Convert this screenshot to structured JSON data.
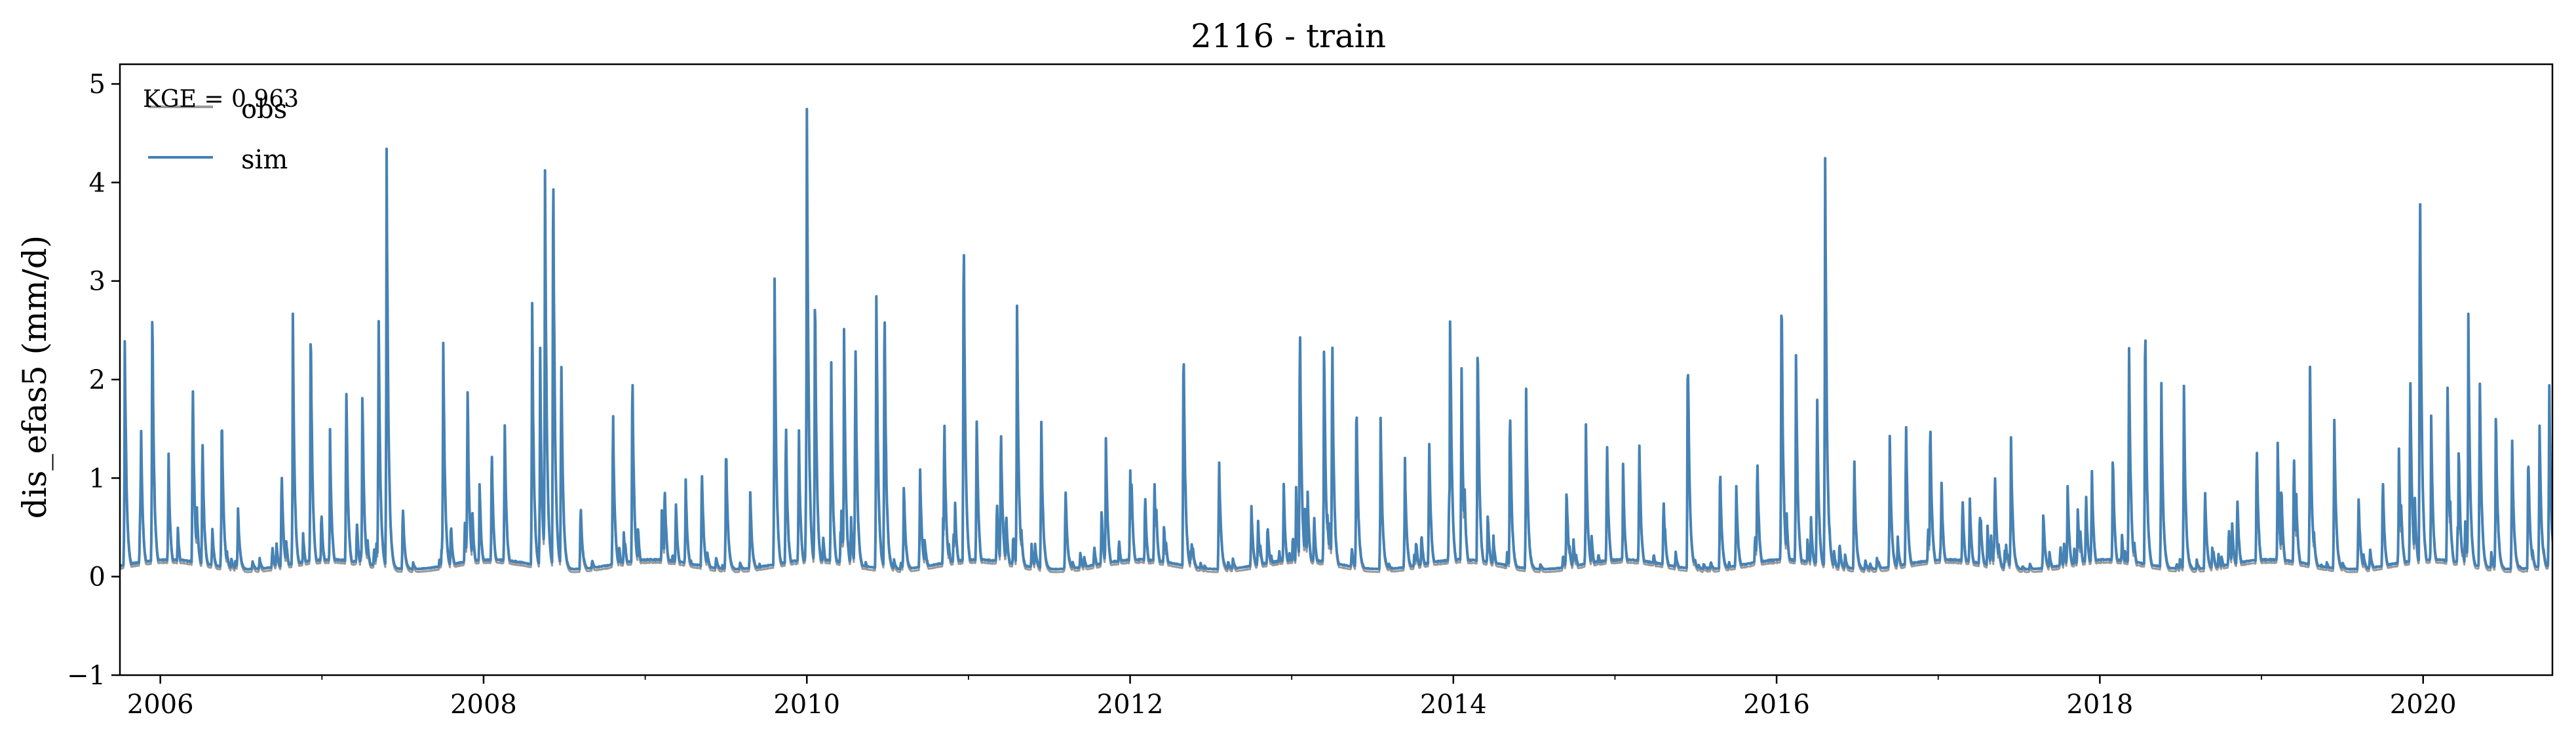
{
  "chart_data": {
    "type": "line",
    "title": "2116 - train",
    "xlabel": "",
    "ylabel": "dis_efas5 (mm/d)",
    "xlim": [
      2005.75,
      2020.8
    ],
    "ylim": [
      -1,
      5.2
    ],
    "xticks": [
      "2006",
      "2008",
      "2010",
      "2012",
      "2014",
      "2016",
      "2018",
      "2020"
    ],
    "yticks": [
      "−1",
      "0",
      "1",
      "2",
      "3",
      "4",
      "5"
    ],
    "grid": false,
    "legend_position": "top-left",
    "annotation": "KGE = 0.963",
    "colors": {
      "obs": "#999999",
      "sim": "#4682b4"
    },
    "peaks": [
      [
        2005.78,
        2.4
      ],
      [
        2005.88,
        1.58
      ],
      [
        2005.95,
        2.83
      ],
      [
        2006.05,
        1.25
      ],
      [
        2006.2,
        2.15
      ],
      [
        2006.26,
        1.47
      ],
      [
        2006.38,
        1.76
      ],
      [
        2006.48,
        0.68
      ],
      [
        2006.75,
        1.1
      ],
      [
        2006.82,
        2.57
      ],
      [
        2006.93,
        2.73
      ],
      [
        2007.05,
        1.38
      ],
      [
        2007.15,
        2.05
      ],
      [
        2007.25,
        1.9
      ],
      [
        2007.35,
        2.73
      ],
      [
        2007.4,
        4.43
      ],
      [
        2007.5,
        0.7
      ],
      [
        2007.75,
        2.5
      ],
      [
        2007.9,
        2.03
      ],
      [
        2008.05,
        1.35
      ],
      [
        2008.13,
        1.65
      ],
      [
        2008.3,
        2.87
      ],
      [
        2008.35,
        2.2
      ],
      [
        2008.38,
        4.26
      ],
      [
        2008.43,
        4.52
      ],
      [
        2008.48,
        2.35
      ],
      [
        2008.6,
        0.7
      ],
      [
        2008.8,
        1.75
      ],
      [
        2008.92,
        2.16
      ],
      [
        2009.12,
        0.95
      ],
      [
        2009.25,
        0.95
      ],
      [
        2009.35,
        1.15
      ],
      [
        2009.5,
        1.35
      ],
      [
        2009.65,
        0.8
      ],
      [
        2009.8,
        3.1
      ],
      [
        2009.87,
        1.6
      ],
      [
        2009.95,
        1.5
      ],
      [
        2010.0,
        4.97
      ],
      [
        2010.05,
        3.08
      ],
      [
        2010.15,
        2.2
      ],
      [
        2010.23,
        2.45
      ],
      [
        2010.3,
        2.57
      ],
      [
        2010.43,
        2.9
      ],
      [
        2010.48,
        2.93
      ],
      [
        2010.6,
        0.9
      ],
      [
        2010.7,
        1.1
      ],
      [
        2010.85,
        1.7
      ],
      [
        2010.97,
        3.8
      ],
      [
        2011.05,
        1.75
      ],
      [
        2011.2,
        1.65
      ],
      [
        2011.3,
        2.83
      ],
      [
        2011.45,
        1.6
      ],
      [
        2011.6,
        0.9
      ],
      [
        2011.85,
        1.45
      ],
      [
        2012.0,
        1.1
      ],
      [
        2012.15,
        1.0
      ],
      [
        2012.33,
        2.57
      ],
      [
        2012.55,
        1.25
      ],
      [
        2012.75,
        0.7
      ],
      [
        2012.85,
        0.5
      ],
      [
        2012.95,
        0.9
      ],
      [
        2013.05,
        2.77
      ],
      [
        2013.2,
        2.45
      ],
      [
        2013.25,
        2.55
      ],
      [
        2013.4,
        1.85
      ],
      [
        2013.55,
        1.6
      ],
      [
        2013.7,
        1.15
      ],
      [
        2013.85,
        1.45
      ],
      [
        2013.98,
        2.77
      ],
      [
        2014.05,
        2.25
      ],
      [
        2014.15,
        2.6
      ],
      [
        2014.35,
        1.8
      ],
      [
        2014.45,
        1.85
      ],
      [
        2014.7,
        0.9
      ],
      [
        2014.82,
        1.45
      ],
      [
        2014.95,
        1.4
      ],
      [
        2015.05,
        1.1
      ],
      [
        2015.15,
        1.45
      ],
      [
        2015.3,
        0.8
      ],
      [
        2015.45,
        2.5
      ],
      [
        2015.65,
        1.1
      ],
      [
        2015.75,
        0.9
      ],
      [
        2015.88,
        1.25
      ],
      [
        2016.03,
        3.03
      ],
      [
        2016.12,
        2.28
      ],
      [
        2016.25,
        1.9
      ],
      [
        2016.3,
        4.44
      ],
      [
        2016.48,
        1.2
      ],
      [
        2016.7,
        1.4
      ],
      [
        2016.8,
        1.65
      ],
      [
        2016.95,
        1.63
      ],
      [
        2017.15,
        0.8
      ],
      [
        2017.35,
        1.1
      ],
      [
        2017.45,
        1.4
      ],
      [
        2017.65,
        0.6
      ],
      [
        2017.8,
        0.9
      ],
      [
        2017.95,
        1.1
      ],
      [
        2018.08,
        1.3
      ],
      [
        2018.18,
        2.45
      ],
      [
        2018.28,
        2.73
      ],
      [
        2018.38,
        1.95
      ],
      [
        2018.52,
        1.88
      ],
      [
        2018.65,
        0.9
      ],
      [
        2018.85,
        0.8
      ],
      [
        2018.97,
        1.38
      ],
      [
        2019.1,
        1.3
      ],
      [
        2019.2,
        1.25
      ],
      [
        2019.3,
        2.1
      ],
      [
        2019.45,
        1.65
      ],
      [
        2019.6,
        0.8
      ],
      [
        2019.75,
        1.0
      ],
      [
        2019.85,
        1.25
      ],
      [
        2019.92,
        2.12
      ],
      [
        2019.98,
        4.44
      ],
      [
        2020.05,
        1.6
      ],
      [
        2020.15,
        2.12
      ],
      [
        2020.22,
        1.3
      ],
      [
        2020.28,
        2.55
      ],
      [
        2020.35,
        2.15
      ],
      [
        2020.45,
        1.7
      ],
      [
        2020.55,
        1.45
      ],
      [
        2020.65,
        1.3
      ],
      [
        2020.72,
        1.6
      ],
      [
        2020.78,
        2.0
      ]
    ],
    "series": [
      {
        "name": "obs",
        "baseflow": 0.04,
        "peak_scale": 0.93
      },
      {
        "name": "sim",
        "baseflow": 0.07,
        "peak_scale": 1.0
      }
    ]
  }
}
